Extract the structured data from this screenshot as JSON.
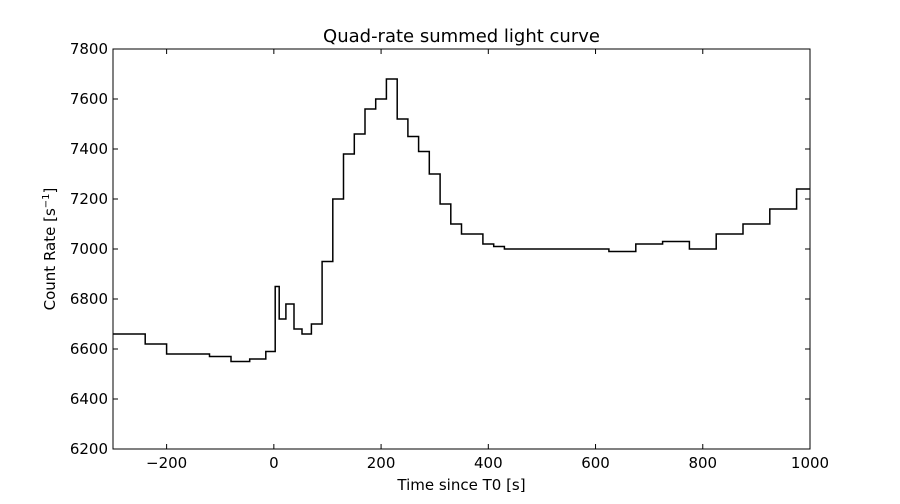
{
  "chart_data": {
    "type": "line",
    "title": "Quad-rate summed light curve",
    "xlabel": "Time since T0 [s]",
    "ylabel": "Count Rate [s",
    "ylabel_sup": "−1",
    "ylabel_end": "]",
    "xlim": [
      -300,
      1000
    ],
    "ylim": [
      6200,
      7800
    ],
    "x_ticks": [
      -200,
      0,
      200,
      400,
      600,
      800,
      1000
    ],
    "x_tick_labels": [
      "−200",
      "0",
      "200",
      "400",
      "600",
      "800",
      "1000"
    ],
    "y_ticks": [
      6200,
      6400,
      6600,
      6800,
      7000,
      7200,
      7400,
      7600,
      7800
    ],
    "y_tick_labels": [
      "6200",
      "6400",
      "6600",
      "6800",
      "7000",
      "7200",
      "7400",
      "7600",
      "7800"
    ],
    "grid": false,
    "line_style": "steps-mid",
    "series": [
      {
        "color": "#000000",
        "x": [
          -300,
          -260,
          -220,
          -180,
          -140,
          -100,
          -60,
          -30,
          0,
          5,
          15,
          30,
          45,
          60,
          80,
          100,
          120,
          140,
          160,
          180,
          200,
          220,
          240,
          260,
          280,
          300,
          320,
          340,
          360,
          380,
          400,
          420,
          440,
          460,
          480,
          500,
          550,
          600,
          650,
          700,
          750,
          800,
          850,
          900,
          950,
          1000
        ],
        "values": [
          6660,
          6660,
          6620,
          6580,
          6580,
          6570,
          6550,
          6560,
          6590,
          6850,
          6720,
          6780,
          6680,
          6660,
          6700,
          6950,
          7200,
          7380,
          7460,
          7560,
          7600,
          7680,
          7520,
          7450,
          7390,
          7300,
          7180,
          7100,
          7060,
          7060,
          7020,
          7010,
          7000,
          7000,
          7000,
          7000,
          7000,
          7000,
          6990,
          7020,
          7030,
          7000,
          7060,
          7100,
          7160,
          7240
        ]
      }
    ]
  }
}
